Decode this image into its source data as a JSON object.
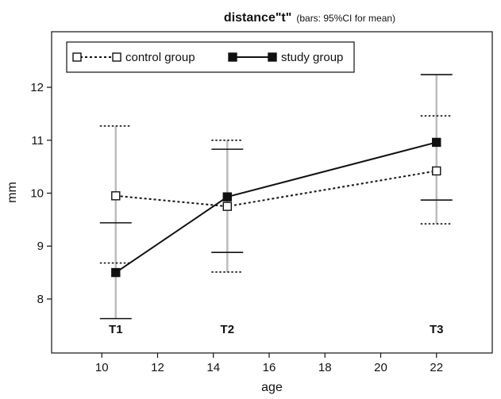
{
  "chart_data": {
    "type": "line",
    "title": "distance\"t\"",
    "subtitle": "(bars: 95%CI for mean)",
    "xlabel": "age",
    "ylabel": "mm",
    "xlim": [
      8.2,
      24.0
    ],
    "ylim": [
      6.98,
      13.05
    ],
    "xticks": [
      10,
      12,
      14,
      16,
      18,
      20,
      22
    ],
    "yticks": [
      8,
      9,
      10,
      11,
      12
    ],
    "grid": false,
    "legend_position": "top-left",
    "point_labels": [
      {
        "x": 10.5,
        "text": "T1"
      },
      {
        "x": 14.5,
        "text": "T2"
      },
      {
        "x": 22,
        "text": "T3"
      }
    ],
    "series": [
      {
        "name": "control group",
        "style": "dotted",
        "marker": "open-square",
        "color": "#111111",
        "points": [
          {
            "x": 10.5,
            "y": 9.95,
            "ci_low": 8.68,
            "ci_high": 11.27
          },
          {
            "x": 14.5,
            "y": 9.75,
            "ci_low": 8.51,
            "ci_high": 11.0
          },
          {
            "x": 22,
            "y": 10.42,
            "ci_low": 9.42,
            "ci_high": 11.46
          }
        ]
      },
      {
        "name": "study group",
        "style": "solid",
        "marker": "filled-square",
        "color": "#111111",
        "points": [
          {
            "x": 10.5,
            "y": 8.5,
            "ci_low": 7.63,
            "ci_high": 9.44
          },
          {
            "x": 14.5,
            "y": 9.93,
            "ci_low": 8.88,
            "ci_high": 10.83
          },
          {
            "x": 22,
            "y": 10.96,
            "ci_low": 9.87,
            "ci_high": 12.24
          }
        ]
      }
    ],
    "ci_stem_color": "#bdbdbd"
  }
}
